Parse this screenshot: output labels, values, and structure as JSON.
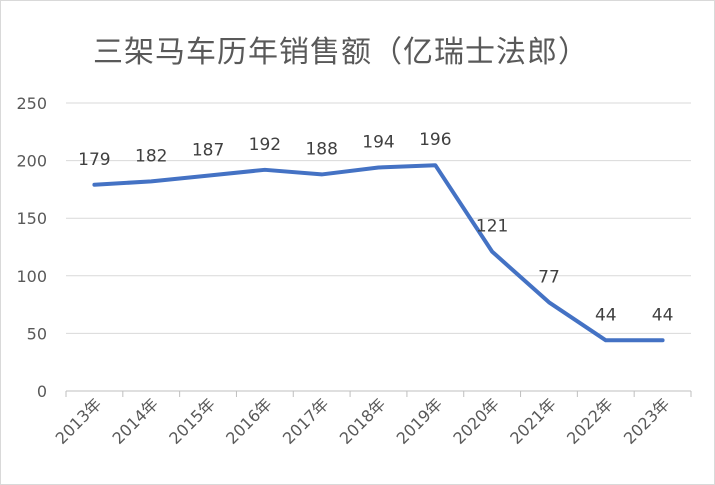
{
  "chart_data": {
    "type": "line",
    "title": "三架马车历年销售额（亿瑞士法郎）",
    "categories": [
      "2013年",
      "2014年",
      "2015年",
      "2016年",
      "2017年",
      "2018年",
      "2019年",
      "2020年",
      "2021年",
      "2022年",
      "2023年"
    ],
    "series": [
      {
        "values": [
          179,
          182,
          187,
          192,
          188,
          194,
          196,
          121,
          77,
          44,
          44
        ]
      }
    ],
    "ylim": [
      0,
      250
    ],
    "yticks": [
      0,
      50,
      100,
      150,
      200,
      250
    ],
    "grid": true,
    "data_labels": true,
    "line_color": "#4472C4"
  }
}
